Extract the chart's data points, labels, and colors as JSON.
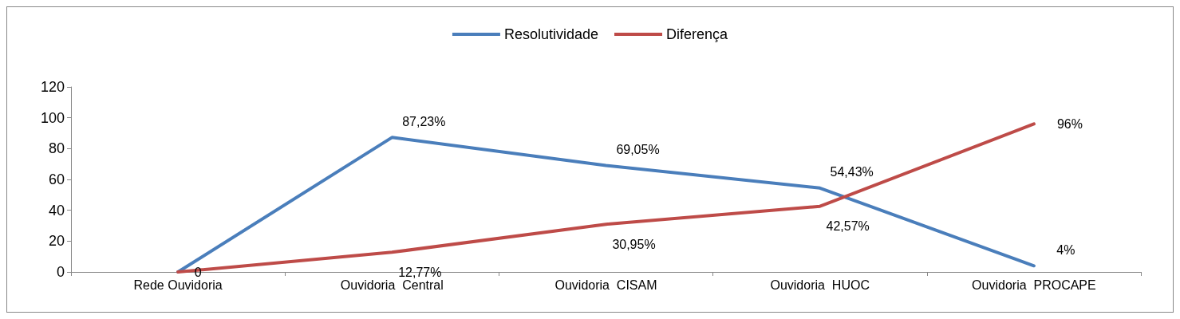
{
  "chart_data": {
    "type": "line",
    "categories": [
      "Rede Ouvidoria",
      "Ouvidoria  Central",
      "Ouvidoria  CISAM",
      "Ouvidoria  HUOC",
      "Ouvidoria  PROCAPE"
    ],
    "series": [
      {
        "name": "Resolutividade",
        "color": "#4a7ebb",
        "values": [
          0,
          87.23,
          69.05,
          54.43,
          4
        ],
        "value_labels": [
          null,
          "87,23%",
          "69,05%",
          "54,43%",
          "4%"
        ]
      },
      {
        "name": "Diferença",
        "color": "#be4b48",
        "values": [
          0,
          12.77,
          30.95,
          42.57,
          96
        ],
        "value_labels": [
          "0",
          "12,77%",
          "30,95%",
          "42,57%",
          "96%"
        ]
      }
    ],
    "ylim": [
      0,
      120
    ],
    "yticks": [
      0,
      20,
      40,
      60,
      80,
      100,
      120
    ],
    "grid": false,
    "legend": "top",
    "marker": "none",
    "line_style": "solid"
  }
}
